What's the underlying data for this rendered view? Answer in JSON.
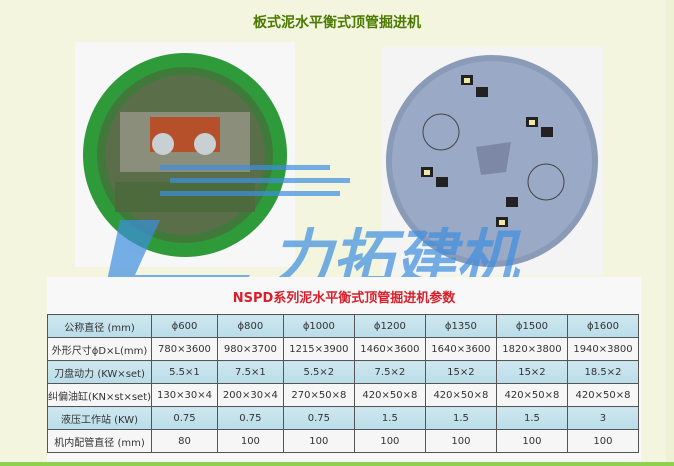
{
  "page_title": "板式泥水平衡式顶管掘进机",
  "watermark_logo_text": "力拓建机",
  "table_title": "NSPD系列泥水平衡式顶管掘进机参数",
  "colors": {
    "title": "#4a7a00",
    "table_title": "#d8202c",
    "header_row": "#c4e2ec",
    "bottom_bar": "#8fd14f"
  },
  "table": {
    "rows": [
      {
        "label": "公称直径 (mm)",
        "values": [
          "ϕ600",
          "ϕ800",
          "ϕ1000",
          "ϕ1200",
          "ϕ1350",
          "ϕ1500",
          "ϕ1600"
        ]
      },
      {
        "label": "外形尺寸ϕD×L(mm)",
        "values": [
          "780×3600",
          "980×3700",
          "1215×3900",
          "1460×3600",
          "1640×3600",
          "1820×3800",
          "1940×3800"
        ]
      },
      {
        "label": "刀盘动力 (KW×set)",
        "values": [
          "5.5×1",
          "7.5×1",
          "5.5×2",
          "7.5×2",
          "15×2",
          "15×2",
          "18.5×2"
        ]
      },
      {
        "label": "纠偏油缸(KN×st×set)",
        "values": [
          "130×30×4",
          "200×30×4",
          "270×50×8",
          "420×50×8",
          "420×50×8",
          "420×50×8",
          "420×50×8"
        ]
      },
      {
        "label": "液压工作站 (KW)",
        "values": [
          "0.75",
          "0.75",
          "0.75",
          "1.5",
          "1.5",
          "1.5",
          "3"
        ]
      },
      {
        "label": "机内配管直径 (mm)",
        "values": [
          "80",
          "100",
          "100",
          "100",
          "100",
          "100",
          "100"
        ]
      }
    ]
  }
}
